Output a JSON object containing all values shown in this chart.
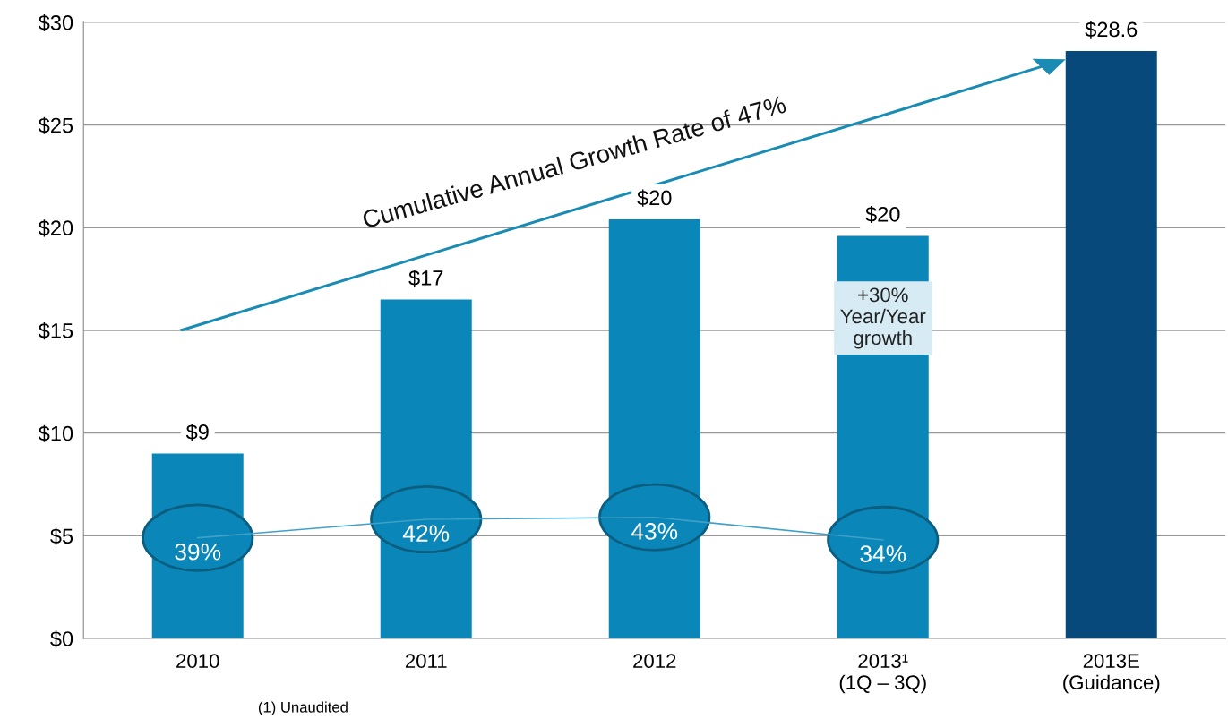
{
  "chart_data": {
    "type": "bar",
    "categories": [
      "2010",
      "2011",
      "2012",
      "2013¹\n(1Q – 3Q)",
      "2013E\n(Guidance)"
    ],
    "series": [
      {
        "colors": [
          "#0a87b8",
          "#0a87b8",
          "#0a87b8",
          "#0a87b8",
          "#08497c"
        ],
        "values": [
          9,
          16.5,
          20.4,
          19.6,
          28.6
        ],
        "value_labels": [
          "$9",
          "$17",
          "$20",
          "$20",
          "$28.6"
        ]
      },
      {
        "type": "line",
        "color": "#3fa0c8",
        "values": [
          4.9,
          5.8,
          5.9,
          4.8,
          null
        ]
      }
    ],
    "ylim": [
      0,
      30
    ],
    "yticks": [
      {
        "value": 0,
        "label": "$0"
      },
      {
        "value": 5,
        "label": "$5"
      },
      {
        "value": 10,
        "label": "$10"
      },
      {
        "value": 15,
        "label": "$15"
      },
      {
        "value": 20,
        "label": "$20"
      },
      {
        "value": 25,
        "label": "$25"
      },
      {
        "value": 30,
        "label": "$30"
      }
    ],
    "grid": "y",
    "annotations": [
      {
        "text": "39%",
        "x": "2010",
        "y": 4.9
      },
      {
        "text": "42%",
        "x": "2011",
        "y": 5.8
      },
      {
        "text": "43%",
        "x": "2012",
        "y": 5.9
      },
      {
        "text": "34%",
        "x": "2013¹\n(1Q – 3Q)",
        "y": 4.8
      },
      "Cumulative Annual Growth Rate of 47%",
      "+30%\nYear/Year\ngrowth",
      "(1) Unaudited"
    ]
  }
}
